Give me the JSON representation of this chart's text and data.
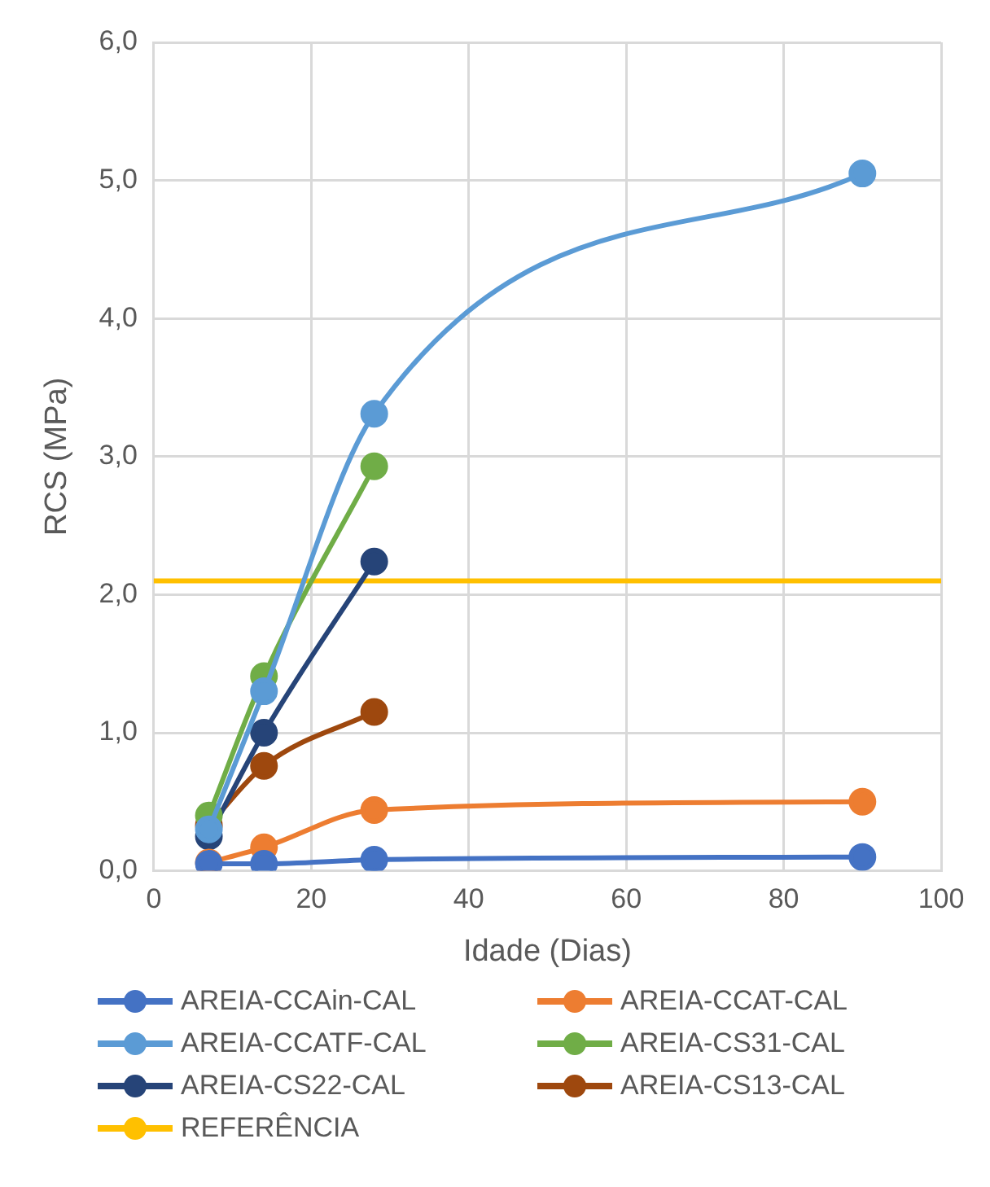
{
  "chart_data": {
    "type": "line",
    "xlabel": "Idade (Dias)",
    "ylabel": "RCS (MPa)",
    "xlim": [
      0,
      100
    ],
    "xticks": [
      0,
      20,
      40,
      60,
      80,
      100
    ],
    "ylim": [
      0,
      6
    ],
    "yticks": [
      {
        "value": 0,
        "label": "0,0"
      },
      {
        "value": 1,
        "label": "1,0"
      },
      {
        "value": 2,
        "label": "2,0"
      },
      {
        "value": 3,
        "label": "3,0"
      },
      {
        "value": 4,
        "label": "4,0"
      },
      {
        "value": 5,
        "label": "5,0"
      },
      {
        "value": 6,
        "label": "6,0"
      }
    ],
    "grid": true,
    "legend": "bottom",
    "marker": "circle",
    "line_style": "solid",
    "series": [
      {
        "name": "AREIA-CCAin-CAL",
        "color": "#4472c4",
        "x": [
          7,
          14,
          28,
          90
        ],
        "values": [
          0.05,
          0.05,
          0.08,
          0.1
        ]
      },
      {
        "name": "AREIA-CCAT-CAL",
        "color": "#ed7d31",
        "x": [
          7,
          14,
          28,
          90
        ],
        "values": [
          0.06,
          0.17,
          0.44,
          0.5
        ]
      },
      {
        "name": "AREIA-CCATF-CAL",
        "color": "#5b9bd5",
        "x": [
          7,
          14,
          28,
          90
        ],
        "values": [
          0.3,
          1.3,
          3.31,
          5.05
        ]
      },
      {
        "name": "AREIA-CS31-CAL",
        "color": "#70ad47",
        "x": [
          7,
          14,
          28
        ],
        "values": [
          0.4,
          1.41,
          2.93
        ]
      },
      {
        "name": "AREIA-CS22-CAL",
        "color": "#264478",
        "x": [
          7,
          14,
          28
        ],
        "values": [
          0.25,
          1.0,
          2.24
        ]
      },
      {
        "name": "AREIA-CS13-CAL",
        "color": "#9e480e",
        "x": [
          7,
          14,
          28
        ],
        "values": [
          0.33,
          0.76,
          1.15
        ]
      },
      {
        "name": "REFERÊNCIA",
        "color": "#ffc000",
        "x": [
          0,
          100
        ],
        "values": [
          2.1,
          2.1
        ],
        "marker": "none"
      }
    ]
  }
}
